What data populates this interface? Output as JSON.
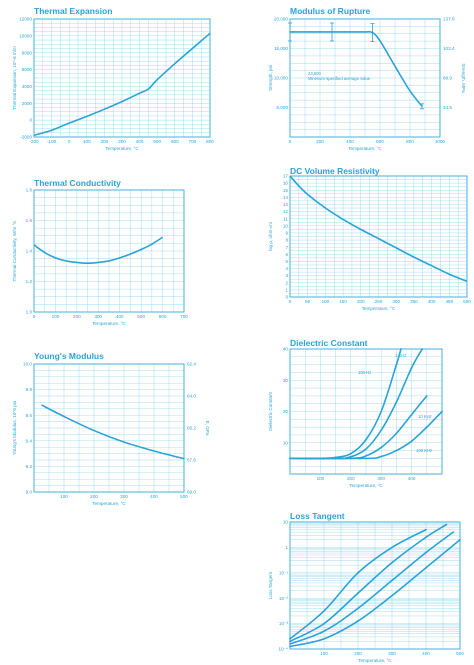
{
  "colors": {
    "accent": "#2aa3d6",
    "grid": "#5bc0e6",
    "frame": "#2aa3d6"
  },
  "chart_data": [
    {
      "id": "thermal-expansion",
      "type": "line",
      "title": "Thermal Expansion",
      "xlabel": "Temperature, °C",
      "ylabel": "Thermal Expansion, 10^-6 m/m",
      "xlim": [
        -200,
        800
      ],
      "ylim": [
        -2000,
        12000
      ],
      "xticks": [
        "-200",
        "-100",
        "0",
        "100",
        "200",
        "300",
        "400",
        "500",
        "600",
        "700",
        "800"
      ],
      "yticks": [
        "-2000",
        "0",
        "2000",
        "4000",
        "6000",
        "8000",
        "10000",
        "12000"
      ],
      "series": [
        {
          "x": [
            -200,
            -100,
            0,
            100,
            200,
            300,
            400,
            450,
            500,
            600,
            700,
            800
          ],
          "y": [
            -1800,
            -1200,
            -350,
            450,
            1300,
            2200,
            3200,
            3700,
            4800,
            6700,
            8500,
            10300
          ]
        }
      ]
    },
    {
      "id": "modulus-of-rupture",
      "type": "line",
      "title": "Modulus of Rupture",
      "xlabel": "Temperature, °C",
      "ylabel": "Strength, psi",
      "ylabel_right": "Strength, MPa",
      "xlim": [
        0,
        1000
      ],
      "ylim": [
        0,
        20000
      ],
      "xticks": [
        "0",
        "200",
        "400",
        "600",
        "800",
        "1000"
      ],
      "yticks": [
        "5,000",
        "10,000",
        "15,000",
        "20,000"
      ],
      "yticks_right": [
        "34.5",
        "68.9",
        "103.4",
        "137.9"
      ],
      "annotation": [
        "23,600",
        "Minimum specified average value"
      ],
      "series": [
        {
          "x": [
            0,
            100,
            200,
            300,
            400,
            500,
            550,
            600,
            700,
            800,
            880
          ],
          "y": [
            17800,
            17800,
            17800,
            17800,
            17800,
            17800,
            17700,
            16300,
            12000,
            7800,
            5200
          ]
        }
      ],
      "error_bars_x": [
        0,
        280,
        550,
        880
      ]
    },
    {
      "id": "thermal-conductivity",
      "type": "line",
      "title": "Thermal Conductivity",
      "xlabel": "Temperature, °C",
      "ylabel": "Thermal Conductivity, W/m °K",
      "xlim": [
        0,
        700
      ],
      "ylim": [
        1.0,
        1.8
      ],
      "xticks": [
        "0",
        "100",
        "200",
        "300",
        "400",
        "500",
        "600",
        "700"
      ],
      "yticks": [
        "1.0",
        "1.2",
        "1.4",
        "1.6",
        "1.8"
      ],
      "series": [
        {
          "x": [
            0,
            50,
            100,
            150,
            200,
            250,
            300,
            350,
            400,
            450,
            500,
            550,
            600
          ],
          "y": [
            1.44,
            1.39,
            1.355,
            1.335,
            1.325,
            1.32,
            1.325,
            1.335,
            1.355,
            1.38,
            1.41,
            1.445,
            1.49
          ]
        }
      ]
    },
    {
      "id": "dc-volume-resistivity",
      "type": "line",
      "title": "DC Volume Resistivity",
      "xlabel": "Temperature, °C",
      "ylabel": "log ρ, ohm-cm",
      "xlim": [
        0,
        500
      ],
      "ylim": [
        0,
        17
      ],
      "xticks": [
        "0",
        "50",
        "100",
        "150",
        "200",
        "250",
        "300",
        "350",
        "400",
        "450",
        "500"
      ],
      "yticks": [
        "0",
        "1",
        "2",
        "3",
        "4",
        "5",
        "6",
        "7",
        "8",
        "9",
        "10",
        "11",
        "12",
        "13",
        "14",
        "15",
        "16",
        "17"
      ],
      "series": [
        {
          "x": [
            0,
            25,
            50,
            100,
            150,
            200,
            250,
            300,
            350,
            400,
            450,
            500
          ],
          "y": [
            17,
            15.6,
            14.4,
            12.5,
            10.9,
            9.5,
            8.2,
            6.9,
            5.6,
            4.4,
            3.2,
            2.2
          ]
        }
      ]
    },
    {
      "id": "youngs-modulus",
      "type": "line",
      "title": "Young's Modulus",
      "xlabel": "Temperature, °C",
      "ylabel": "Young's Modulus, 10^6 psi",
      "ylabel_right": "E, GPa",
      "xlim": [
        0,
        500
      ],
      "ylim": [
        9.0,
        10.0
      ],
      "xticks": [
        "100",
        "200",
        "300",
        "400",
        "500"
      ],
      "yticks": [
        "9.0",
        "9.2",
        "9.4",
        "9.6",
        "9.8",
        "10.0"
      ],
      "yticks_right": [
        "62.4",
        "64.0",
        "66.2",
        "67.6",
        "69.0"
      ],
      "series": [
        {
          "x": [
            25,
            100,
            200,
            300,
            400,
            500
          ],
          "y": [
            9.68,
            9.59,
            9.48,
            9.39,
            9.32,
            9.26
          ]
        }
      ]
    },
    {
      "id": "dielectric-constant",
      "type": "line",
      "title": "Dielectric Constant",
      "xlabel": "Temperature, °C",
      "ylabel": "Dielectric Constant",
      "xlim": [
        0,
        500
      ],
      "ylim": [
        0,
        40
      ],
      "xticks": [
        "100",
        "200",
        "300",
        "400"
      ],
      "yticks": [
        "10",
        "20",
        "30",
        "40"
      ],
      "series": [
        {
          "name": "100 Hz",
          "x": [
            0,
            100,
            150,
            200,
            250,
            300,
            350,
            365
          ],
          "y": [
            5,
            5,
            5.3,
            6.5,
            11,
            20,
            35,
            40
          ]
        },
        {
          "name": "1 KHz",
          "x": [
            0,
            150,
            200,
            250,
            300,
            350,
            400,
            435
          ],
          "y": [
            5,
            5,
            5.5,
            8,
            14,
            23,
            34,
            40
          ]
        },
        {
          "name": "10 KHz",
          "x": [
            0,
            200,
            250,
            300,
            350,
            400,
            450
          ],
          "y": [
            5,
            5,
            5.8,
            8.5,
            13,
            19,
            25
          ]
        },
        {
          "name": "100 KHz",
          "x": [
            0,
            250,
            300,
            350,
            400,
            450,
            500
          ],
          "y": [
            5,
            5,
            5.6,
            7.5,
            10.5,
            15,
            20
          ]
        }
      ],
      "series_labels": [
        "100 Hz",
        "1 KHz",
        "10 KHz",
        "100 KHz"
      ]
    },
    {
      "id": "loss-tangent",
      "type": "line",
      "title": "Loss Tangent",
      "xlabel": "Temperature, °C",
      "ylabel": "Loss Tangent",
      "xlim": [
        0,
        500
      ],
      "ylim_log": [
        -4,
        1
      ],
      "xticks": [
        "100",
        "200",
        "300",
        "400",
        "500"
      ],
      "yticks": [
        "10⁻⁴",
        "10⁻³",
        "10⁻²",
        "10⁻¹",
        "1",
        "10"
      ],
      "series": [
        {
          "x": [
            0,
            100,
            200,
            300,
            400
          ],
          "y_log": [
            -3.6,
            -2.5,
            -1.0,
            0.0,
            0.7
          ]
        },
        {
          "x": [
            0,
            100,
            200,
            300,
            400,
            460
          ],
          "y_log": [
            -3.7,
            -3.0,
            -1.8,
            -0.6,
            0.4,
            0.9
          ]
        },
        {
          "x": [
            0,
            100,
            200,
            300,
            400,
            480
          ],
          "y_log": [
            -3.8,
            -3.3,
            -2.4,
            -1.3,
            -0.2,
            0.6
          ]
        },
        {
          "x": [
            0,
            100,
            200,
            300,
            400,
            500
          ],
          "y_log": [
            -3.9,
            -3.6,
            -2.9,
            -1.9,
            -0.8,
            0.3
          ]
        }
      ]
    }
  ]
}
